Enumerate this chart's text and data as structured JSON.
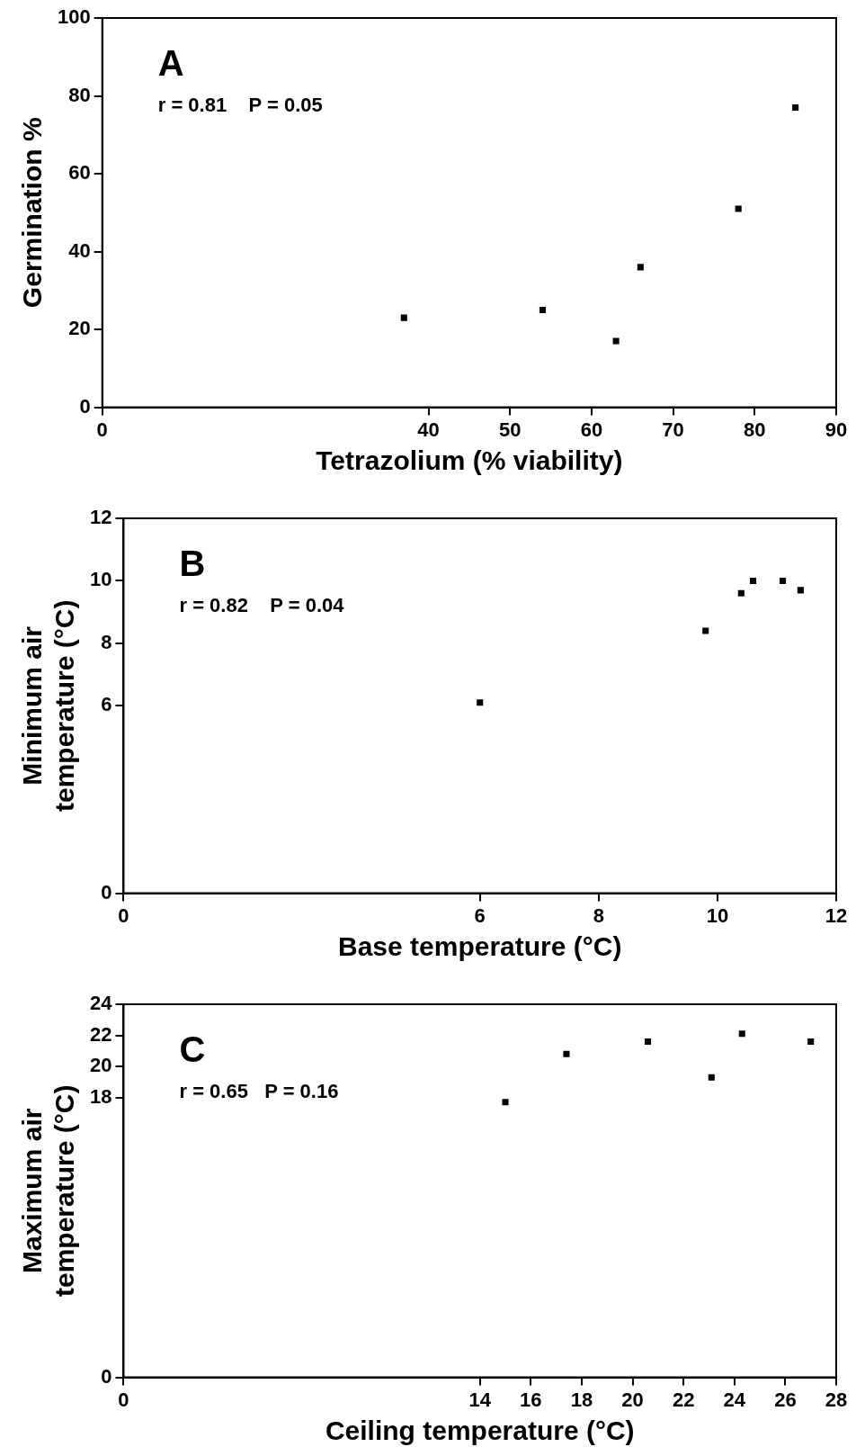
{
  "chart_data": [
    {
      "type": "scatter",
      "xlabel": "Tetrazolium (% viability)",
      "ylabel": "Germination %",
      "annotations": [
        "A",
        "r = 0.81    P = 0.05"
      ],
      "marker": "square",
      "x": [
        37,
        54,
        63,
        66,
        78,
        85
      ],
      "series": [
        {
          "color": "#000000",
          "values": [
            23,
            25,
            17,
            36,
            51,
            77
          ]
        }
      ],
      "xlim": [
        0,
        90
      ],
      "xticks": [
        0,
        40,
        50,
        60,
        70,
        80,
        90
      ],
      "ylim": [
        0,
        100
      ],
      "yticks": [
        0,
        20,
        40,
        60,
        80,
        100
      ]
    },
    {
      "type": "scatter",
      "xlabel": "Base temperature (°C)",
      "ylabel": "Minimum air\ntemperature (°C)",
      "annotations": [
        "B",
        "r = 0.82    P = 0.04"
      ],
      "marker": "square",
      "x": [
        6.0,
        9.8,
        10.4,
        10.6,
        11.1,
        11.4
      ],
      "series": [
        {
          "color": "#000000",
          "values": [
            6.1,
            8.4,
            9.6,
            10.0,
            10.0,
            9.7
          ]
        }
      ],
      "xlim": [
        0,
        12
      ],
      "xticks": [
        0,
        6,
        8,
        10,
        12
      ],
      "ylim": [
        0,
        12
      ],
      "yticks": [
        0,
        6,
        8,
        10,
        12
      ]
    },
    {
      "type": "scatter",
      "xlabel": "Ceiling temperature (°C)",
      "ylabel": "Maximum air\ntemperature (°C)",
      "annotations": [
        "C",
        "r = 0.65   P = 0.16"
      ],
      "marker": "square",
      "x": [
        15.0,
        17.4,
        20.6,
        23.1,
        24.3,
        27.0
      ],
      "series": [
        {
          "color": "#000000",
          "values": [
            17.7,
            20.8,
            21.6,
            19.3,
            22.1,
            21.6
          ]
        }
      ],
      "xlim": [
        0,
        28
      ],
      "xticks": [
        0,
        14,
        16,
        18,
        20,
        22,
        24,
        26,
        28
      ],
      "ylim": [
        0,
        24
      ],
      "yticks": [
        0,
        18,
        20,
        22,
        24
      ]
    }
  ]
}
